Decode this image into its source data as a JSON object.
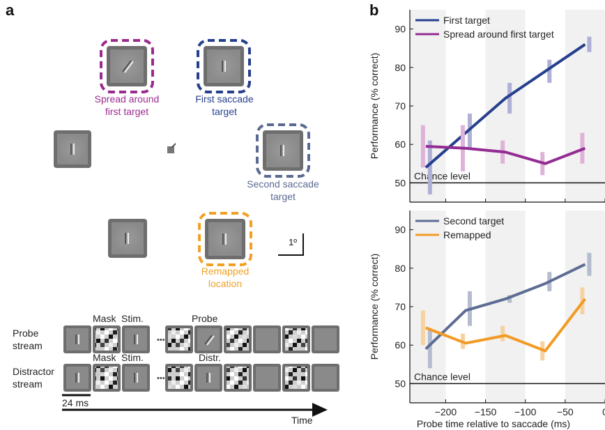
{
  "panel_a": {
    "letter": "a",
    "labels": {
      "spread": [
        "Spread around",
        "first target"
      ],
      "first_saccade": [
        "First saccade",
        "target"
      ],
      "second_saccade": [
        "Second saccade",
        "target"
      ],
      "remapped": [
        "Remapped",
        "location"
      ],
      "scale_bar": "1º"
    },
    "colors": {
      "spread": "#9b2a8f",
      "first": "#253f8e",
      "second": "#5b6a92",
      "remapped": "#f2a024",
      "frame": "#6e6e6e",
      "patch": "#8a8a8a"
    },
    "stream": {
      "probe_label": [
        "Probe",
        "stream"
      ],
      "distractor_label": [
        "Distractor",
        "stream"
      ],
      "mask": "Mask",
      "stim": "Stim.",
      "probe": "Probe",
      "distr": "Distr.",
      "ellipsis": "•••",
      "duration": "24 ms",
      "time": "Time"
    }
  },
  "panel_b": {
    "letter": "b"
  },
  "chart_data": [
    {
      "type": "line",
      "xlabel": "",
      "ylabel": "Performance (% correct)",
      "ylim": [
        45,
        95
      ],
      "xlim": [
        -245,
        0
      ],
      "yticks": [
        50,
        60,
        70,
        80,
        90
      ],
      "shaded_bins": [
        [
          -250,
          -200
        ],
        [
          -150,
          -100
        ],
        [
          -50,
          0
        ]
      ],
      "x": [
        -225,
        -175,
        -125,
        -75,
        -25
      ],
      "annotation": "Chance level",
      "chance": 50,
      "legend_position": "top-left",
      "series": [
        {
          "name": "First target",
          "color": "#253f8e",
          "errcolor": "#aeb0d6",
          "values": [
            54,
            63,
            72,
            79,
            86
          ],
          "err": [
            [
              47,
              61
            ],
            [
              59,
              68
            ],
            [
              68,
              76
            ],
            [
              76,
              82
            ],
            [
              84,
              88
            ]
          ]
        },
        {
          "name": "Spread around first target",
          "color": "#932b92",
          "errcolor": "#dfb2d9",
          "values": [
            59.5,
            59,
            58,
            55,
            59
          ],
          "err": [
            [
              54,
              65
            ],
            [
              53,
              65
            ],
            [
              55,
              61
            ],
            [
              52,
              58
            ],
            [
              55,
              63
            ]
          ]
        }
      ]
    },
    {
      "type": "line",
      "xlabel": "Probe time relative to saccade (ms)",
      "ylabel": "Performance (% correct)",
      "ylim": [
        45,
        95
      ],
      "xlim": [
        -245,
        0
      ],
      "yticks": [
        50,
        60,
        70,
        80,
        90
      ],
      "xticks": [
        -200,
        -150,
        -100,
        -50,
        0
      ],
      "xtick_labels": [
        "−200",
        "−150",
        "−100",
        "−50",
        "0"
      ],
      "shaded_bins": [
        [
          -250,
          -200
        ],
        [
          -150,
          -100
        ],
        [
          -50,
          0
        ]
      ],
      "x": [
        -225,
        -175,
        -125,
        -75,
        -25
      ],
      "annotation": "Chance level",
      "chance": 50,
      "legend_position": "top-left",
      "series": [
        {
          "name": "Second target",
          "color": "#5d6c93",
          "errcolor": "#b5bccf",
          "values": [
            59,
            69,
            72,
            76,
            81
          ],
          "err": [
            [
              54,
              64
            ],
            [
              65,
              74
            ],
            [
              71,
              73
            ],
            [
              74,
              79
            ],
            [
              78,
              84
            ]
          ]
        },
        {
          "name": "Remapped",
          "color": "#f29a25",
          "errcolor": "#f7d2a1",
          "values": [
            64.5,
            60.5,
            62.5,
            58.5,
            72
          ],
          "err": [
            [
              60,
              69
            ],
            [
              59,
              63
            ],
            [
              61,
              65
            ],
            [
              56,
              61
            ],
            [
              68,
              75
            ]
          ]
        }
      ]
    }
  ]
}
